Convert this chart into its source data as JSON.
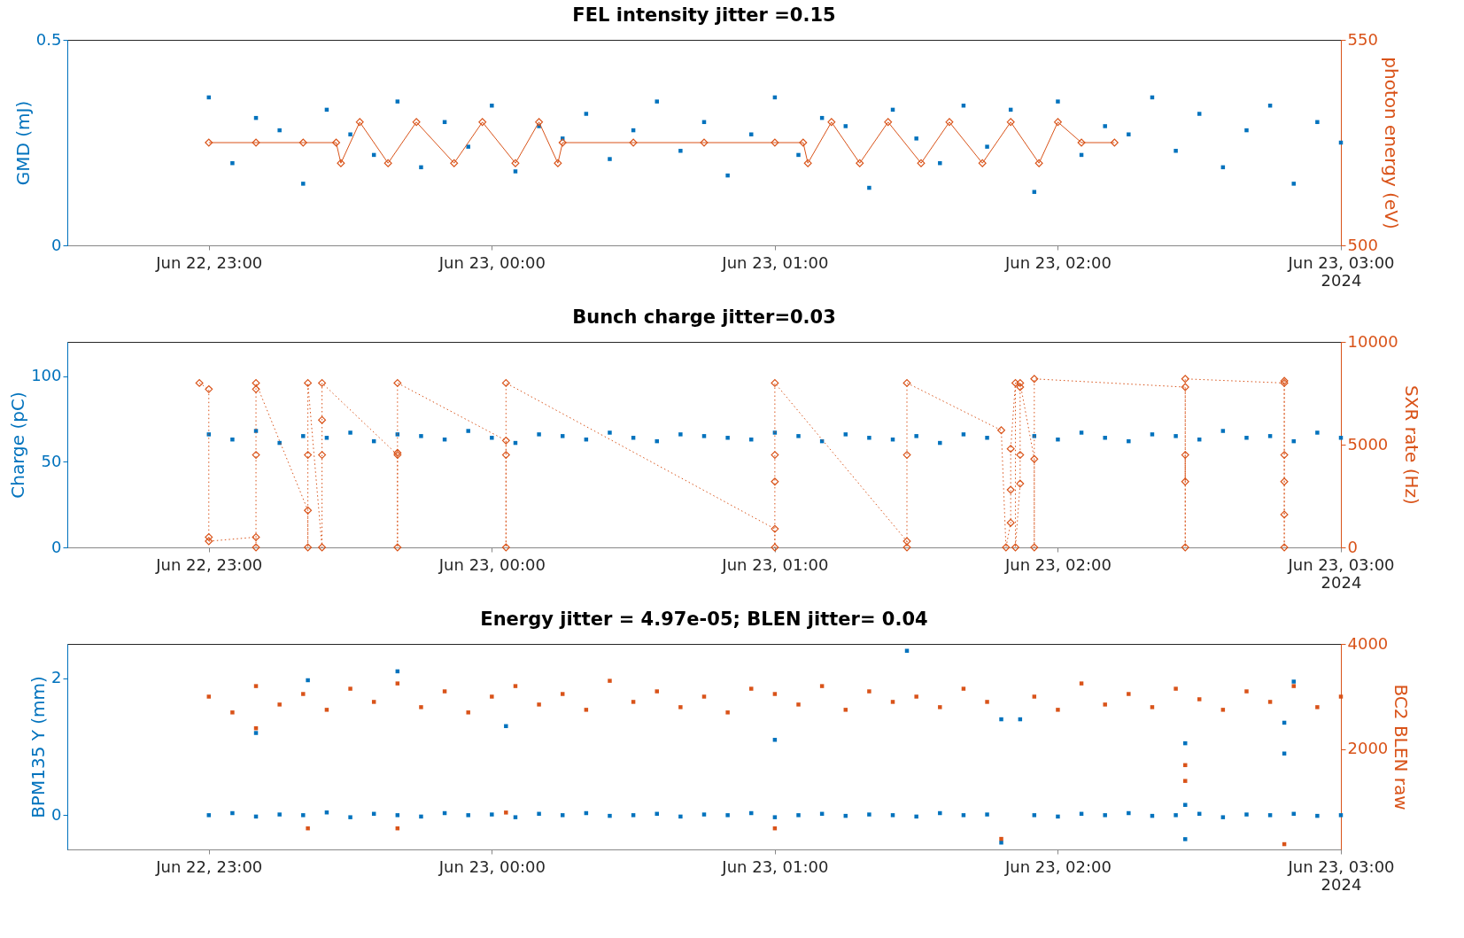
{
  "chart_data": [
    {
      "type": "scatter",
      "title": "FEL intensity jitter =0.15",
      "ylabel": "GMD (mJ)",
      "y2label": "photon energy (eV)",
      "xlim": [
        "2024-06-22T22:30",
        "2024-06-23T03:00"
      ],
      "xticks": [
        {
          "value": "2024-06-22T23:00",
          "label": "Jun 22, 23:00"
        },
        {
          "value": "2024-06-23T00:00",
          "label": "Jun 23, 00:00"
        },
        {
          "value": "2024-06-23T01:00",
          "label": "Jun 23, 01:00"
        },
        {
          "value": "2024-06-23T02:00",
          "label": "Jun 23, 02:00"
        },
        {
          "value": "2024-06-23T03:00",
          "label": "Jun 23, 03:00\n2024"
        }
      ],
      "ylim": [
        0,
        0.5
      ],
      "yticks": [
        0,
        0.5
      ],
      "y2lim": [
        500,
        550
      ],
      "y2ticks": [
        500,
        550
      ],
      "x": [
        "2024-06-22T23:00",
        "2024-06-22T23:05",
        "2024-06-22T23:10",
        "2024-06-22T23:15",
        "2024-06-22T23:20",
        "2024-06-22T23:25",
        "2024-06-22T23:30",
        "2024-06-22T23:35",
        "2024-06-22T23:40",
        "2024-06-22T23:45",
        "2024-06-22T23:50",
        "2024-06-22T23:55",
        "2024-06-23T00:00",
        "2024-06-23T00:05",
        "2024-06-23T00:10",
        "2024-06-23T00:15",
        "2024-06-23T00:20",
        "2024-06-23T00:25",
        "2024-06-23T00:30",
        "2024-06-23T00:35",
        "2024-06-23T00:40",
        "2024-06-23T00:45",
        "2024-06-23T00:50",
        "2024-06-23T00:55",
        "2024-06-23T01:00",
        "2024-06-23T01:05",
        "2024-06-23T01:10",
        "2024-06-23T01:15",
        "2024-06-23T01:20",
        "2024-06-23T01:25",
        "2024-06-23T01:30",
        "2024-06-23T01:35",
        "2024-06-23T01:40",
        "2024-06-23T01:45",
        "2024-06-23T01:50",
        "2024-06-23T01:55",
        "2024-06-23T02:00",
        "2024-06-23T02:05",
        "2024-06-23T02:10",
        "2024-06-23T02:15",
        "2024-06-23T02:20",
        "2024-06-23T02:25",
        "2024-06-23T02:30",
        "2024-06-23T02:35",
        "2024-06-23T02:40",
        "2024-06-23T02:45",
        "2024-06-23T02:50",
        "2024-06-23T02:55",
        "2024-06-23T03:00"
      ],
      "series": [
        {
          "color": "#0072bd",
          "marker": "square",
          "values": [
            0.36,
            0.2,
            0.31,
            0.28,
            0.15,
            0.33,
            0.27,
            0.22,
            0.35,
            0.19,
            0.3,
            0.24,
            0.34,
            0.18,
            0.29,
            0.26,
            0.32,
            0.21,
            0.28,
            0.35,
            0.23,
            0.3,
            0.17,
            0.27,
            0.36,
            0.22,
            0.31,
            0.29,
            0.14,
            0.33,
            0.26,
            0.2,
            0.34,
            0.24,
            0.33,
            0.13,
            0.35,
            0.22,
            0.29,
            0.27,
            0.36,
            0.23,
            0.32,
            0.19,
            0.28,
            0.34,
            0.15,
            0.3,
            0.25
          ]
        },
        {
          "type": "line",
          "axis": "y2",
          "color": "#d95319",
          "marker": "diamond",
          "line_style": "solid",
          "x": [
            "2024-06-22T23:00",
            "2024-06-22T23:10",
            "2024-06-22T23:20",
            "2024-06-22T23:27",
            "2024-06-22T23:28",
            "2024-06-22T23:32",
            "2024-06-22T23:38",
            "2024-06-22T23:44",
            "2024-06-22T23:52",
            "2024-06-22T23:58",
            "2024-06-23T00:05",
            "2024-06-23T00:10",
            "2024-06-23T00:14",
            "2024-06-23T00:15",
            "2024-06-23T00:30",
            "2024-06-23T00:45",
            "2024-06-23T01:00",
            "2024-06-23T01:06",
            "2024-06-23T01:07",
            "2024-06-23T01:12",
            "2024-06-23T01:18",
            "2024-06-23T01:24",
            "2024-06-23T01:31",
            "2024-06-23T01:37",
            "2024-06-23T01:44",
            "2024-06-23T01:50",
            "2024-06-23T01:56",
            "2024-06-23T02:00",
            "2024-06-23T02:05",
            "2024-06-23T02:12"
          ],
          "values": [
            525,
            525,
            525,
            525,
            520,
            530,
            520,
            530,
            520,
            530,
            520,
            530,
            520,
            525,
            525,
            525,
            525,
            525,
            520,
            530,
            520,
            530,
            520,
            530,
            520,
            530,
            520,
            530,
            525,
            525
          ]
        }
      ]
    },
    {
      "type": "scatter",
      "title": "Bunch charge jitter=0.03",
      "ylabel": "Charge (pC)",
      "y2label": "SXR rate (Hz)",
      "xlim": [
        "2024-06-22T22:30",
        "2024-06-23T03:00"
      ],
      "xticks": [
        {
          "value": "2024-06-22T23:00",
          "label": "Jun 22, 23:00"
        },
        {
          "value": "2024-06-23T00:00",
          "label": "Jun 23, 00:00"
        },
        {
          "value": "2024-06-23T01:00",
          "label": "Jun 23, 01:00"
        },
        {
          "value": "2024-06-23T02:00",
          "label": "Jun 23, 02:00"
        },
        {
          "value": "2024-06-23T03:00",
          "label": "Jun 23, 03:00\n2024"
        }
      ],
      "ylim": [
        0,
        120
      ],
      "yticks": [
        0,
        50,
        100
      ],
      "y2lim": [
        0,
        10000
      ],
      "y2ticks": [
        0,
        5000,
        10000
      ],
      "x": [
        "2024-06-22T23:00",
        "2024-06-22T23:05",
        "2024-06-22T23:10",
        "2024-06-22T23:15",
        "2024-06-22T23:20",
        "2024-06-22T23:25",
        "2024-06-22T23:30",
        "2024-06-22T23:35",
        "2024-06-22T23:40",
        "2024-06-22T23:45",
        "2024-06-22T23:50",
        "2024-06-22T23:55",
        "2024-06-23T00:00",
        "2024-06-23T00:05",
        "2024-06-23T00:10",
        "2024-06-23T00:15",
        "2024-06-23T00:20",
        "2024-06-23T00:25",
        "2024-06-23T00:30",
        "2024-06-23T00:35",
        "2024-06-23T00:40",
        "2024-06-23T00:45",
        "2024-06-23T00:50",
        "2024-06-23T00:55",
        "2024-06-23T01:00",
        "2024-06-23T01:05",
        "2024-06-23T01:10",
        "2024-06-23T01:15",
        "2024-06-23T01:20",
        "2024-06-23T01:25",
        "2024-06-23T01:30",
        "2024-06-23T01:35",
        "2024-06-23T01:40",
        "2024-06-23T01:45",
        "2024-06-23T01:50",
        "2024-06-23T01:55",
        "2024-06-23T02:00",
        "2024-06-23T02:05",
        "2024-06-23T02:10",
        "2024-06-23T02:15",
        "2024-06-23T02:20",
        "2024-06-23T02:25",
        "2024-06-23T02:30",
        "2024-06-23T02:35",
        "2024-06-23T02:40",
        "2024-06-23T02:45",
        "2024-06-23T02:50",
        "2024-06-23T02:55",
        "2024-06-23T03:00"
      ],
      "series": [
        {
          "color": "#0072bd",
          "marker": "square",
          "values": [
            66,
            63,
            68,
            61,
            65,
            64,
            67,
            62,
            66,
            65,
            63,
            68,
            64,
            61,
            66,
            65,
            63,
            67,
            64,
            62,
            66,
            65,
            64,
            63,
            67,
            65,
            62,
            66,
            64,
            63,
            65,
            61,
            66,
            64,
            null,
            65,
            63,
            67,
            64,
            62,
            66,
            65,
            63,
            68,
            64,
            65,
            62,
            67,
            64
          ]
        },
        {
          "type": "line",
          "axis": "y2",
          "color": "#d95319",
          "marker": "diamond",
          "line_style": "dotted",
          "x": [
            "2024-06-22T22:58",
            "2024-06-22T23:00",
            "2024-06-22T23:00",
            "2024-06-22T23:00",
            "2024-06-22T23:10",
            "2024-06-22T23:10",
            "2024-06-22T23:10",
            "2024-06-22T23:10",
            "2024-06-22T23:10",
            "2024-06-22T23:21",
            "2024-06-22T23:21",
            "2024-06-22T23:21",
            "2024-06-22T23:21",
            "2024-06-22T23:24",
            "2024-06-22T23:24",
            "2024-06-22T23:24",
            "2024-06-22T23:24",
            "2024-06-22T23:40",
            "2024-06-22T23:40",
            "2024-06-22T23:40",
            "2024-06-22T23:40",
            "2024-06-23T00:03",
            "2024-06-23T00:03",
            "2024-06-23T00:03",
            "2024-06-23T00:03",
            "2024-06-23T01:00",
            "2024-06-23T01:00",
            "2024-06-23T01:00",
            "2024-06-23T01:00",
            "2024-06-23T01:00",
            "2024-06-23T01:28",
            "2024-06-23T01:28",
            "2024-06-23T01:28",
            "2024-06-23T01:28",
            "2024-06-23T01:48",
            "2024-06-23T01:49",
            "2024-06-23T01:50",
            "2024-06-23T01:50",
            "2024-06-23T01:50",
            "2024-06-23T01:51",
            "2024-06-23T01:51",
            "2024-06-23T01:52",
            "2024-06-23T01:52",
            "2024-06-23T01:52",
            "2024-06-23T01:52",
            "2024-06-23T01:55",
            "2024-06-23T01:55",
            "2024-06-23T01:55",
            "2024-06-23T02:27",
            "2024-06-23T02:27",
            "2024-06-23T02:27",
            "2024-06-23T02:27",
            "2024-06-23T02:27",
            "2024-06-23T02:48",
            "2024-06-23T02:48",
            "2024-06-23T02:48",
            "2024-06-23T02:48",
            "2024-06-23T02:48",
            "2024-06-23T02:48"
          ],
          "values": [
            8000,
            7700,
            500,
            300,
            500,
            0,
            4500,
            7700,
            8000,
            1800,
            0,
            4500,
            8000,
            0,
            4500,
            6200,
            8000,
            4500,
            0,
            4600,
            8000,
            5200,
            4500,
            0,
            8000,
            900,
            0,
            3200,
            4500,
            8000,
            300,
            0,
            4500,
            8000,
            5700,
            0,
            1200,
            2800,
            4800,
            8000,
            0,
            3100,
            4500,
            7800,
            8000,
            4300,
            0,
            8200,
            7800,
            0,
            4500,
            3200,
            8200,
            8000,
            0,
            1600,
            3200,
            4500,
            8100
          ]
        }
      ]
    },
    {
      "type": "scatter",
      "title": "Energy jitter = 4.97e-05; BLEN jitter= 0.04",
      "ylabel": "BPM135 Y (mm)",
      "y2label": "BC2 BLEN raw",
      "xlim": [
        "2024-06-22T22:30",
        "2024-06-23T03:00"
      ],
      "xticks": [
        {
          "value": "2024-06-22T23:00",
          "label": "Jun 22, 23:00"
        },
        {
          "value": "2024-06-23T00:00",
          "label": "Jun 23, 00:00"
        },
        {
          "value": "2024-06-23T01:00",
          "label": "Jun 23, 01:00"
        },
        {
          "value": "2024-06-23T02:00",
          "label": "Jun 23, 02:00"
        },
        {
          "value": "2024-06-23T03:00",
          "label": "Jun 23, 03:00\n2024"
        }
      ],
      "ylim": [
        -0.5,
        2.5
      ],
      "yticks": [
        0,
        2
      ],
      "y2lim": [
        100,
        4000
      ],
      "y2ticks": [
        2000,
        4000
      ],
      "x": [
        "2024-06-22T23:00",
        "2024-06-22T23:05",
        "2024-06-22T23:10",
        "2024-06-22T23:15",
        "2024-06-22T23:20",
        "2024-06-22T23:25",
        "2024-06-22T23:30",
        "2024-06-22T23:35",
        "2024-06-22T23:40",
        "2024-06-22T23:45",
        "2024-06-22T23:50",
        "2024-06-22T23:55",
        "2024-06-23T00:00",
        "2024-06-23T00:05",
        "2024-06-23T00:10",
        "2024-06-23T00:15",
        "2024-06-23T00:20",
        "2024-06-23T00:25",
        "2024-06-23T00:30",
        "2024-06-23T00:35",
        "2024-06-23T00:40",
        "2024-06-23T00:45",
        "2024-06-23T00:50",
        "2024-06-23T00:55",
        "2024-06-23T01:00",
        "2024-06-23T01:05",
        "2024-06-23T01:10",
        "2024-06-23T01:15",
        "2024-06-23T01:20",
        "2024-06-23T01:25",
        "2024-06-23T01:30",
        "2024-06-23T01:35",
        "2024-06-23T01:40",
        "2024-06-23T01:45",
        "2024-06-23T01:50",
        "2024-06-23T01:55",
        "2024-06-23T02:00",
        "2024-06-23T02:05",
        "2024-06-23T02:10",
        "2024-06-23T02:15",
        "2024-06-23T02:20",
        "2024-06-23T02:25",
        "2024-06-23T02:30",
        "2024-06-23T02:35",
        "2024-06-23T02:40",
        "2024-06-23T02:45",
        "2024-06-23T02:50",
        "2024-06-23T02:55",
        "2024-06-23T03:00",
        "2024-06-22T23:10",
        "2024-06-22T23:21",
        "2024-06-22T23:40",
        "2024-06-23T00:03",
        "2024-06-23T01:00",
        "2024-06-23T01:28",
        "2024-06-23T01:48",
        "2024-06-23T01:48",
        "2024-06-23T01:52",
        "2024-06-23T02:27",
        "2024-06-23T02:27",
        "2024-06-23T02:27",
        "2024-06-23T02:48",
        "2024-06-23T02:48",
        "2024-06-23T02:50"
      ],
      "series": [
        {
          "color": "#0072bd",
          "marker": "square",
          "values": [
            0,
            0.03,
            -0.02,
            0.01,
            0,
            0.04,
            -0.03,
            0.02,
            0,
            -0.02,
            0.03,
            0,
            0.01,
            -0.03,
            0.02,
            0,
            0.03,
            -0.01,
            0,
            0.02,
            -0.02,
            0.01,
            0,
            0.03,
            -0.03,
            0,
            0.02,
            -0.01,
            0.01,
            0,
            -0.02,
            0.03,
            0,
            0.01,
            null,
            0,
            -0.02,
            0.02,
            0,
            0.03,
            -0.01,
            0,
            0.02,
            -0.03,
            0.01,
            0,
            0.02,
            -0.01,
            0,
            1.2,
            1.97,
            2.1,
            1.3,
            1.1,
            2.4,
            1.4,
            -0.4,
            1.4,
            1.05,
            0.15,
            -0.35,
            0.9,
            1.35,
            1.95
          ]
        },
        {
          "axis": "y2",
          "color": "#d95319",
          "marker": "square",
          "values": [
            3000,
            2700,
            3200,
            2850,
            3050,
            2750,
            3150,
            2900,
            3250,
            2800,
            3100,
            2700,
            3000,
            3200,
            2850,
            3050,
            2750,
            3300,
            2900,
            3100,
            2800,
            3000,
            2700,
            3150,
            3050,
            2850,
            3200,
            2750,
            3100,
            2900,
            3000,
            2800,
            3150,
            2900,
            null,
            3000,
            2750,
            3250,
            2850,
            3050,
            2800,
            3150,
            2950,
            2750,
            3100,
            2900,
            3200,
            2800,
            3000,
            2400,
            500,
            500,
            800,
            500,
            null,
            null,
            300,
            null,
            1700,
            1400,
            null,
            200,
            null,
            null
          ]
        }
      ]
    }
  ]
}
